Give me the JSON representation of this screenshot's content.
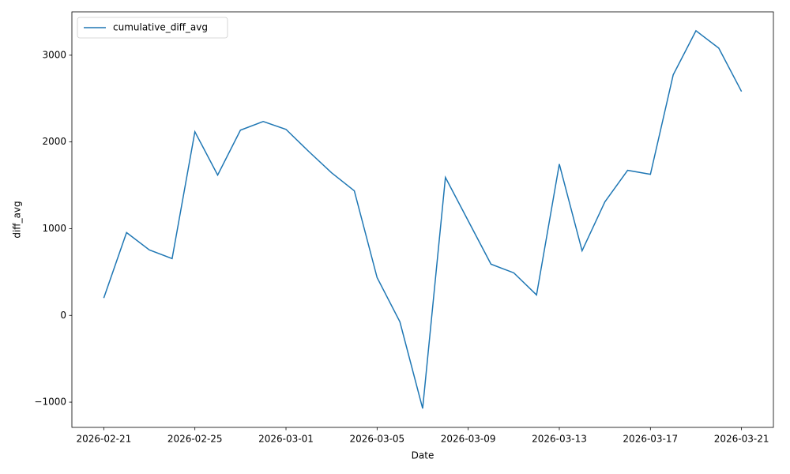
{
  "chart_data": {
    "type": "line",
    "xlabel": "Date",
    "ylabel": "diff_avg",
    "legend": "upper left",
    "x": [
      "2026-02-21",
      "2026-02-22",
      "2026-02-23",
      "2026-02-24",
      "2026-02-25",
      "2026-02-26",
      "2026-02-27",
      "2026-02-28",
      "2026-03-01",
      "2026-03-02",
      "2026-03-03",
      "2026-03-04",
      "2026-03-05",
      "2026-03-06",
      "2026-03-07",
      "2026-03-08",
      "2026-03-09",
      "2026-03-10",
      "2026-03-11",
      "2026-03-12",
      "2026-03-13",
      "2026-03-14",
      "2026-03-15",
      "2026-03-16",
      "2026-03-17",
      "2026-03-18",
      "2026-03-19",
      "2026-03-20",
      "2026-03-21"
    ],
    "series": [
      {
        "name": "cumulative_diff_avg",
        "color": "#1f77b4",
        "values": [
          200,
          955,
          755,
          655,
          2118,
          1618,
          2136,
          2236,
          2145,
          1890,
          1645,
          1436,
          436,
          -73,
          -1073,
          1591,
          1091,
          591,
          491,
          236,
          1745,
          745,
          1309,
          1673,
          1627,
          2773,
          3282,
          3082,
          2582
        ]
      }
    ],
    "xlim": [
      "2026-02-19T14:24:00Z",
      "2026-03-22T09:36:00Z"
    ],
    "xticks": [
      "2026-02-21",
      "2026-02-25",
      "2026-03-01",
      "2026-03-05",
      "2026-03-09",
      "2026-03-13",
      "2026-03-17",
      "2026-03-21"
    ],
    "ylim": [
      -1291,
      3500
    ],
    "yticks": [
      {
        "value": -1000,
        "label": "−1000"
      },
      0,
      1000,
      2000,
      3000
    ]
  }
}
